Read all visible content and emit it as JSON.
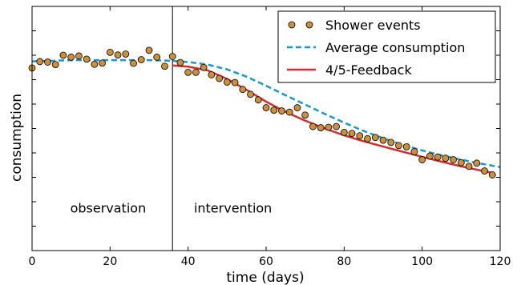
{
  "chart_data": {
    "type": "scatter",
    "xlabel": "time (days)",
    "ylabel": "consumption",
    "xlim": [
      0,
      120
    ],
    "ylim": [
      0,
      1
    ],
    "xticks": [
      0,
      20,
      40,
      60,
      80,
      100,
      120
    ],
    "yticks_unlabeled": [
      0.1,
      0.2,
      0.3,
      0.4,
      0.5,
      0.6,
      0.7,
      0.8,
      0.9
    ],
    "grid": false,
    "legend_position": "top-right",
    "vline_x": 36,
    "annotations": [
      {
        "text": "observation",
        "x": 19.5,
        "y": 0.155
      },
      {
        "text": "intervention",
        "x": 51.5,
        "y": 0.155
      }
    ],
    "series": [
      {
        "name": "Shower events",
        "kind": "points",
        "color": "#cc8f3c",
        "x": [
          0,
          2,
          4,
          6,
          8,
          10,
          12,
          14,
          16,
          18,
          20,
          22,
          24,
          26,
          28,
          30,
          32,
          34,
          36,
          38,
          40,
          42,
          44,
          46,
          48,
          50,
          52,
          54,
          56,
          58,
          60,
          62,
          64,
          66,
          68,
          70,
          72,
          74,
          76,
          78,
          80,
          82,
          84,
          86,
          88,
          90,
          92,
          94,
          96,
          98,
          100,
          102,
          104,
          106,
          108,
          110,
          112,
          114,
          116,
          118
        ],
        "y": [
          0.748,
          0.774,
          0.772,
          0.762,
          0.8,
          0.792,
          0.797,
          0.784,
          0.763,
          0.768,
          0.812,
          0.801,
          0.805,
          0.767,
          0.782,
          0.82,
          0.792,
          0.755,
          0.795,
          0.77,
          0.73,
          0.73,
          0.75,
          0.72,
          0.705,
          0.69,
          0.688,
          0.66,
          0.64,
          0.617,
          0.585,
          0.575,
          0.572,
          0.567,
          0.585,
          0.555,
          0.508,
          0.503,
          0.505,
          0.508,
          0.484,
          0.48,
          0.47,
          0.458,
          0.463,
          0.452,
          0.443,
          0.43,
          0.425,
          0.405,
          0.372,
          0.387,
          0.383,
          0.378,
          0.372,
          0.36,
          0.345,
          0.358,
          0.326,
          0.31
        ]
      },
      {
        "name": "Average consumption",
        "kind": "line",
        "style": "dashed",
        "color": "#1a97d2",
        "x": [
          0,
          5,
          10,
          15,
          20,
          25,
          30,
          35,
          40,
          45,
          50,
          55,
          60,
          65,
          70,
          75,
          80,
          85,
          90,
          95,
          100,
          105,
          110,
          115,
          120
        ],
        "y": [
          0.775,
          0.777,
          0.78,
          0.78,
          0.78,
          0.78,
          0.78,
          0.778,
          0.772,
          0.762,
          0.742,
          0.712,
          0.675,
          0.636,
          0.598,
          0.56,
          0.524,
          0.49,
          0.46,
          0.433,
          0.41,
          0.39,
          0.372,
          0.356,
          0.342
        ]
      },
      {
        "name": "4/5-Feedback",
        "kind": "line",
        "style": "solid",
        "color": "#d42d2d",
        "x": [
          36,
          40,
          45,
          50,
          55,
          60,
          65,
          70,
          75,
          80,
          85,
          90,
          95,
          100,
          105,
          110,
          115,
          118
        ],
        "y": [
          0.758,
          0.753,
          0.738,
          0.703,
          0.658,
          0.61,
          0.568,
          0.532,
          0.5,
          0.472,
          0.448,
          0.426,
          0.405,
          0.384,
          0.364,
          0.345,
          0.328,
          0.318
        ]
      }
    ]
  }
}
